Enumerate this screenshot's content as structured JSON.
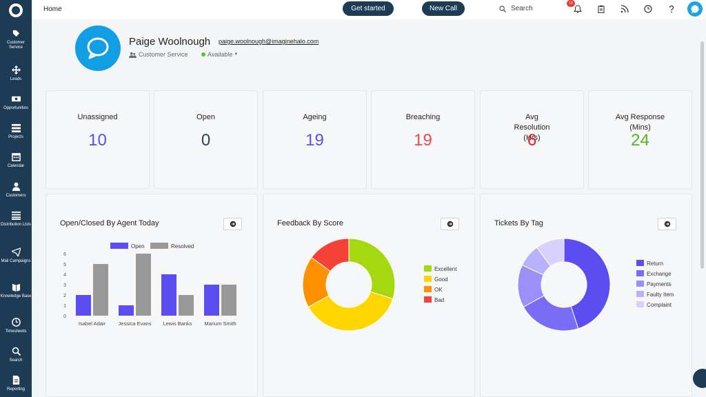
{
  "header": {
    "home": "Home",
    "get_started": "Get started",
    "new_call": "New Call",
    "search_label": "Search",
    "notification_count": "10"
  },
  "sidebar": {
    "items": [
      {
        "label": "Customer Service",
        "icon": "tag-icon"
      },
      {
        "label": "Leads",
        "icon": "move-icon"
      },
      {
        "label": "Opportunities",
        "icon": "money-icon"
      },
      {
        "label": "Projects",
        "icon": "projects-icon"
      },
      {
        "label": "Calendar",
        "icon": "calendar-icon"
      },
      {
        "label": "Customers",
        "icon": "person-icon"
      },
      {
        "label": "Distribution Lists",
        "icon": "list-icon"
      },
      {
        "label": "Mail Campaigns",
        "icon": "paper-plane-icon"
      },
      {
        "label": "Knowledge Base",
        "icon": "book-icon"
      },
      {
        "label": "Timesheets",
        "icon": "clock-icon"
      },
      {
        "label": "Search",
        "icon": "search-icon"
      },
      {
        "label": "Reporting",
        "icon": "report-icon"
      }
    ]
  },
  "profile": {
    "name": "Paige Woolnough",
    "email": "paige.woolnough@imaginehalo.com",
    "department": "Customer Service",
    "status": "Available"
  },
  "stats": [
    {
      "label": "Unassigned",
      "value": "10",
      "color": "#5b4df0"
    },
    {
      "label": "Open",
      "value": "0",
      "color": "#2f4155"
    },
    {
      "label": "Ageing",
      "value": "19",
      "color": "#5b4df0"
    },
    {
      "label": "Breaching",
      "value": "19",
      "color": "#e94c44"
    },
    {
      "label": "Avg Resolution (Hrs)",
      "value": "6",
      "color": "#e02424"
    },
    {
      "label": "Avg Response (Mins)",
      "value": "24",
      "color": "#52b71e"
    }
  ],
  "panels": {
    "agents_title": "Open/Closed By Agent Today",
    "feedback_title": "Feedback By Score",
    "tags_title": "Tickets By Tag"
  },
  "chart_data": [
    {
      "type": "bar",
      "title": "Open/Closed By Agent Today",
      "categories": [
        "Isabel Adair",
        "Jessica Evans",
        "Lewis Banks",
        "Marium Smith"
      ],
      "series": [
        {
          "name": "Open",
          "values": [
            2,
            1,
            4,
            3
          ],
          "color": "#5b4df0"
        },
        {
          "name": "Resolved",
          "values": [
            5,
            6,
            2,
            3
          ],
          "color": "#999999"
        }
      ],
      "yticks": [
        "0",
        "1",
        "2",
        "3",
        "4",
        "5",
        "6"
      ],
      "ylim": [
        0,
        6
      ],
      "legend": "top"
    },
    {
      "type": "pie",
      "title": "Feedback By Score",
      "labels": [
        "Excellent",
        "Good",
        "OK",
        "Bad"
      ],
      "values": [
        30,
        37,
        18,
        15
      ],
      "colors": [
        "#a6d812",
        "#ffd500",
        "#ff9000",
        "#f44336"
      ],
      "legend": "right"
    },
    {
      "type": "pie",
      "title": "Tickets By Tag",
      "labels": [
        "Return",
        "Exchange",
        "Payments",
        "Faulty Item",
        "Complaint"
      ],
      "values": [
        45,
        22,
        15,
        8,
        10
      ],
      "colors": [
        "#5b4df0",
        "#7b6cf5",
        "#9c8ff7",
        "#bab1fa",
        "#d7d1fc"
      ],
      "legend": "right"
    }
  ]
}
